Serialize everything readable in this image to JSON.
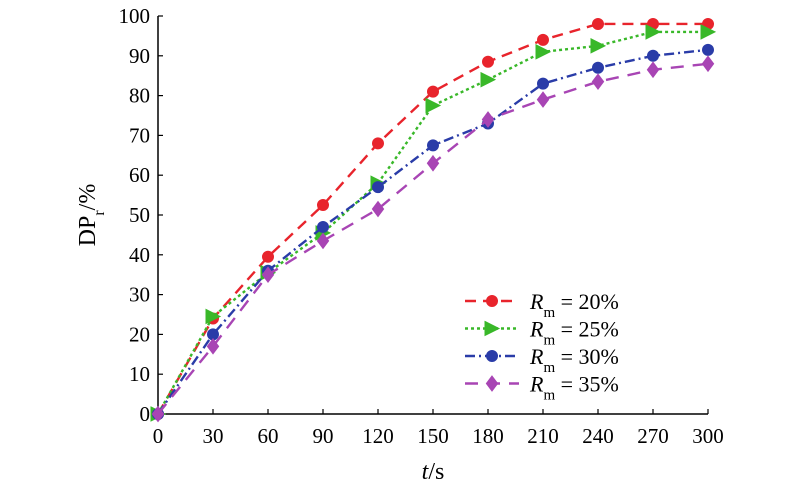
{
  "chart_data": {
    "type": "line",
    "xlabel": {
      "italic": "t",
      "rest": "/s"
    },
    "ylabel": {
      "main": "DP",
      "sub": "r",
      "rest": "/%"
    },
    "x": [
      0,
      30,
      60,
      90,
      120,
      150,
      180,
      210,
      240,
      270,
      300
    ],
    "xlim": [
      0,
      300
    ],
    "ylim": [
      0,
      100
    ],
    "xticks": [
      0,
      30,
      60,
      90,
      120,
      150,
      180,
      210,
      240,
      270,
      300
    ],
    "yticks": [
      0,
      10,
      20,
      30,
      40,
      50,
      60,
      70,
      80,
      90,
      100
    ],
    "grid": false,
    "legend_position": "bottom-right",
    "series": [
      {
        "name": "Rm = 20%",
        "label_parts": {
          "italic": "R",
          "sub": "m",
          "rest": " = 20%"
        },
        "color": "#e8242c",
        "dash": "dashed",
        "marker": "circle",
        "values": [
          0,
          24,
          39.5,
          52.5,
          68,
          81,
          88.5,
          94,
          98,
          98,
          98
        ]
      },
      {
        "name": "Rm = 25%",
        "label_parts": {
          "italic": "R",
          "sub": "m",
          "rest": " = 25%"
        },
        "color": "#39b829",
        "dash": "dotted",
        "marker": "triangle-right",
        "values": [
          0,
          24.5,
          35.5,
          45.5,
          58,
          77.5,
          84,
          91,
          92.5,
          96,
          96
        ]
      },
      {
        "name": "Rm = 30%",
        "label_parts": {
          "italic": "R",
          "sub": "m",
          "rest": " = 30%"
        },
        "color": "#2a3ca8",
        "dash": "dash-dot",
        "marker": "circle",
        "values": [
          0,
          20,
          36,
          47,
          57,
          67.5,
          73,
          83,
          87,
          90,
          91.5
        ]
      },
      {
        "name": "Rm = 35%",
        "label_parts": {
          "italic": "R",
          "sub": "m",
          "rest": " = 35%"
        },
        "color": "#a845b4",
        "dash": "long-dash",
        "marker": "diamond",
        "values": [
          0,
          17,
          35,
          43.5,
          51.5,
          63,
          74,
          79,
          83.5,
          86.5,
          88
        ]
      }
    ]
  }
}
